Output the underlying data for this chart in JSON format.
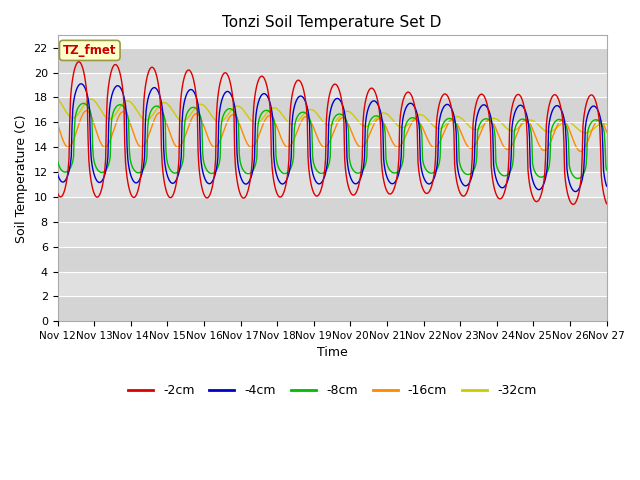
{
  "title": "Tonzi Soil Temperature Set D",
  "xlabel": "Time",
  "ylabel": "Soil Temperature (C)",
  "ylim": [
    0,
    23
  ],
  "yticks": [
    0,
    2,
    4,
    6,
    8,
    10,
    12,
    14,
    16,
    18,
    20,
    22
  ],
  "xtick_labels": [
    "Nov 12",
    "Nov 13",
    "Nov 14",
    "Nov 15",
    "Nov 16",
    "Nov 17",
    "Nov 18",
    "Nov 19",
    "Nov 20",
    "Nov 21",
    "Nov 22",
    "Nov 23",
    "Nov 24",
    "Nov 25",
    "Nov 26",
    "Nov 27"
  ],
  "legend_labels": [
    "-2cm",
    "-4cm",
    "-8cm",
    "-16cm",
    "-32cm"
  ],
  "legend_colors": [
    "#dd0000",
    "#0000cc",
    "#00bb00",
    "#ff8800",
    "#cccc00"
  ],
  "annotation_text": "TZ_fmet",
  "annotation_bg": "#ffffcc",
  "annotation_border": "#999944",
  "band_dark": "#d4d4d4",
  "band_light": "#e0e0e0"
}
